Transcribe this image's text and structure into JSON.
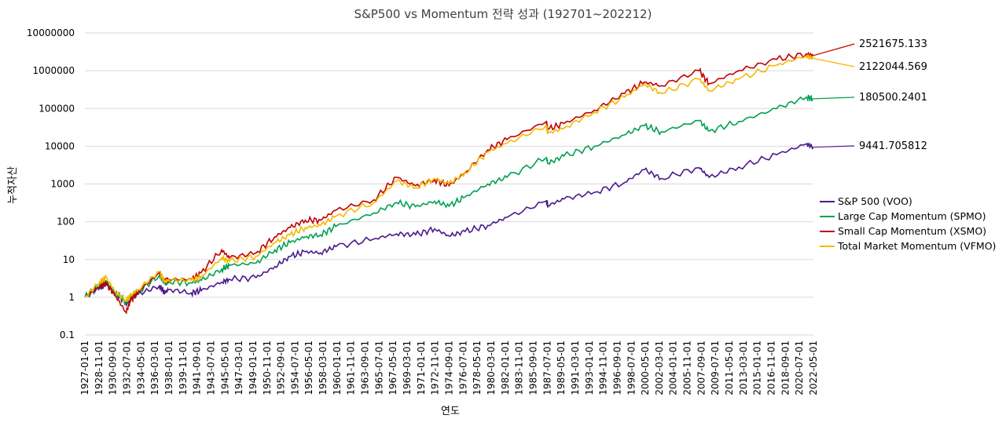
{
  "chart_data": {
    "type": "line",
    "title": "S&P500 vs Momentum 전략 성과 (192701~202212)",
    "xlabel": "연도",
    "ylabel": "누적자산",
    "y_scale": "log",
    "ylim": [
      0.1,
      10000000
    ],
    "y_ticks": [
      "0.1",
      "1",
      "10",
      "100",
      "1000",
      "10000",
      "100000",
      "1000000",
      "10000000"
    ],
    "x_ticks": [
      "1927-01-01",
      "1928-11-01",
      "1930-09-01",
      "1932-07-01",
      "1934-05-01",
      "1936-03-01",
      "1938-01-01",
      "1939-11-01",
      "1941-09-01",
      "1943-07-01",
      "1945-05-01",
      "1947-03-01",
      "1949-01-01",
      "1950-11-01",
      "1952-09-01",
      "1954-07-01",
      "1956-05-01",
      "1958-03-01",
      "1960-01-01",
      "1961-11-01",
      "1963-09-01",
      "1965-07-01",
      "1967-05-01",
      "1969-03-01",
      "1971-01-01",
      "1972-11-01",
      "1974-09-01",
      "1976-07-01",
      "1978-05-01",
      "1980-03-01",
      "1982-01-01",
      "1983-11-01",
      "1985-09-01",
      "1987-07-01",
      "1989-05-01",
      "1991-03-01",
      "1993-01-01",
      "1994-11-01",
      "1996-09-01",
      "1998-07-01",
      "2000-05-01",
      "2002-03-01",
      "2004-01-01",
      "2005-11-01",
      "2007-09-01",
      "2009-07-01",
      "2011-05-01",
      "2013-03-01",
      "2015-01-01",
      "2016-11-01",
      "2018-09-01",
      "2020-07-01",
      "2022-05-01"
    ],
    "legend_position": "right",
    "grid": "horizontal",
    "series": [
      {
        "name": "S&P 500 (VOO)",
        "color": "#4b1a8c",
        "final_label": "9441.705812",
        "x": [
          1927.0,
          1929.0,
          1929.8,
          1931.0,
          1932.4,
          1933.0,
          1934.0,
          1936.8,
          1937.5,
          1938.0,
          1941.0,
          1942.3,
          1945.0,
          1946.0,
          1949.5,
          1952.0,
          1954.0,
          1956.0,
          1958.0,
          1960.0,
          1965.0,
          1968.0,
          1970.5,
          1973.0,
          1974.9,
          1977.0,
          1980.0,
          1982.5,
          1987.7,
          1987.9,
          1990.0,
          1994.0,
          1998.0,
          2000.6,
          2002.8,
          2007.8,
          2009.1,
          2013.0,
          2018.0,
          2021.9,
          2022.8
        ],
        "y": [
          1,
          1.8,
          2.3,
          1.2,
          0.7,
          0.9,
          1.2,
          2.0,
          1.3,
          1.6,
          1.3,
          1.5,
          2.5,
          3.0,
          3.3,
          6.5,
          12,
          16,
          15,
          22,
          35,
          48,
          45,
          65,
          42,
          55,
          80,
          130,
          350,
          270,
          400,
          600,
          1100,
          2400,
          1400,
          2700,
          1500,
          2800,
          6000,
          11500,
          9441.705812
        ]
      },
      {
        "name": "Large Cap Momentum (SPMO)",
        "color": "#00a050",
        "final_label": "180500.2401",
        "x": [
          1927.0,
          1929.0,
          1929.8,
          1931.0,
          1932.4,
          1933.0,
          1934.0,
          1936.8,
          1937.5,
          1938.0,
          1941.0,
          1942.3,
          1945.0,
          1946.0,
          1949.5,
          1952.0,
          1954.0,
          1956.0,
          1958.0,
          1960.0,
          1965.0,
          1968.0,
          1970.5,
          1973.0,
          1974.9,
          1977.0,
          1980.0,
          1982.5,
          1987.7,
          1987.9,
          1990.0,
          1994.0,
          1998.0,
          2000.6,
          2002.8,
          2007.8,
          2009.1,
          2013.0,
          2018.0,
          2021.9,
          2022.8
        ],
        "y": [
          1,
          2.2,
          2.7,
          1.3,
          0.75,
          1.0,
          1.4,
          3.8,
          2.2,
          2.6,
          2.4,
          2.8,
          5.5,
          7,
          8,
          18,
          28,
          40,
          45,
          75,
          170,
          320,
          250,
          350,
          260,
          450,
          1000,
          1500,
          5000,
          3500,
          5500,
          10000,
          20000,
          35000,
          24000,
          48000,
          25000,
          45000,
          100000,
          200000,
          180500.2401
        ]
      },
      {
        "name": "Small Cap Momentum (XSMO)",
        "color": "#c00000",
        "final_label": "2521675.133",
        "x": [
          1927.0,
          1929.0,
          1929.8,
          1931.0,
          1932.4,
          1933.0,
          1934.0,
          1936.8,
          1937.5,
          1938.0,
          1941.0,
          1942.3,
          1945.0,
          1946.0,
          1949.5,
          1952.0,
          1954.0,
          1956.0,
          1958.0,
          1960.0,
          1965.0,
          1968.0,
          1970.5,
          1973.0,
          1974.9,
          1977.0,
          1980.0,
          1982.5,
          1987.7,
          1987.9,
          1990.0,
          1994.0,
          1998.0,
          2000.6,
          2002.8,
          2007.8,
          2009.1,
          2013.0,
          2018.0,
          2021.9,
          2022.8
        ],
        "y": [
          1,
          2.0,
          2.3,
          1.1,
          0.4,
          0.8,
          1.4,
          4.5,
          2.6,
          3.0,
          3.0,
          4.5,
          18,
          11,
          15,
          40,
          70,
          110,
          110,
          200,
          380,
          1500,
          900,
          1300,
          900,
          2000,
          8000,
          15000,
          45000,
          28000,
          40000,
          90000,
          250000,
          500000,
          400000,
          1000000,
          450000,
          1000000,
          2000000,
          2800000,
          2521675.133
        ]
      },
      {
        "name": "Total Market Momentum (VFMO)",
        "color": "#f5b800",
        "final_label": "2122044.569",
        "x": [
          1927.0,
          1929.0,
          1929.8,
          1931.0,
          1932.4,
          1933.0,
          1934.0,
          1936.8,
          1937.5,
          1938.0,
          1941.0,
          1942.3,
          1945.0,
          1946.0,
          1949.5,
          1952.0,
          1954.0,
          1956.0,
          1958.0,
          1960.0,
          1965.0,
          1968.0,
          1970.5,
          1973.0,
          1974.9,
          1977.0,
          1980.0,
          1982.5,
          1987.7,
          1987.9,
          1990.0,
          1994.0,
          1998.0,
          2000.6,
          2002.8,
          2007.8,
          2009.1,
          2013.0,
          2018.0,
          2021.9,
          2022.8
        ],
        "y": [
          1,
          2.6,
          3.3,
          1.4,
          0.8,
          1.1,
          1.6,
          4.8,
          2.5,
          2.9,
          2.8,
          3.5,
          11,
          9,
          12,
          28,
          45,
          70,
          80,
          140,
          320,
          1200,
          800,
          1400,
          1000,
          2000,
          7000,
          12000,
          35000,
          22000,
          30000,
          80000,
          200000,
          450000,
          250000,
          600000,
          300000,
          600000,
          1400000,
          2500000,
          2122044.569
        ]
      }
    ]
  }
}
